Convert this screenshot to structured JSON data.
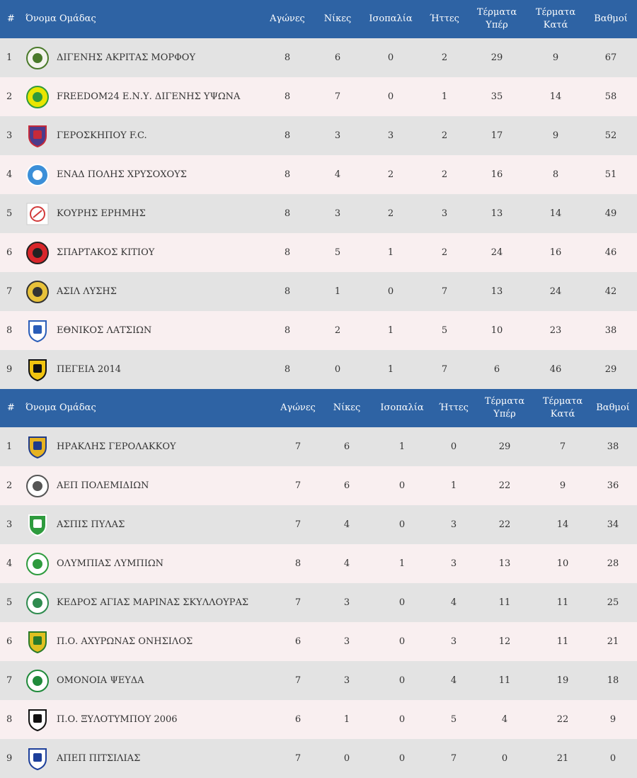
{
  "headers": {
    "num": "#",
    "team": "Όνομα Ομάδας",
    "played": "Αγώνες",
    "wins": "Νίκες",
    "draws": "Ισοπαλία",
    "losses": "Ήττες",
    "gf_1": "Τέρματα",
    "gf_2": "Υπέρ",
    "ga_1": "Τέρματα",
    "ga_2": "Κατά",
    "points": "Βαθμοί"
  },
  "tables": [
    {
      "rows": [
        {
          "pos": "1",
          "team": "ΔΙΓΕΝΗΣ ΑΚΡΙΤΑΣ ΜΟΡΦΟΥ",
          "played": "8",
          "wins": "6",
          "draws": "0",
          "losses": "2",
          "gf": "29",
          "ga": "9",
          "points": "67",
          "logo": {
            "bg": "#f4f4ee",
            "fg": "#4a7a2a",
            "shape": "circle"
          }
        },
        {
          "pos": "2",
          "team": "FREEDOM24 Ε.Ν.Υ. ΔΙΓΕΝΗΣ ΥΨΩΝΑ",
          "played": "8",
          "wins": "7",
          "draws": "0",
          "losses": "1",
          "gf": "35",
          "ga": "14",
          "points": "58",
          "logo": {
            "bg": "#e9e500",
            "fg": "#2f9a3a",
            "shape": "circle"
          }
        },
        {
          "pos": "3",
          "team": "ΓΕΡΟΣΚΗΠΟΥ F.C.",
          "played": "8",
          "wins": "3",
          "draws": "3",
          "losses": "2",
          "gf": "17",
          "ga": "9",
          "points": "52",
          "logo": {
            "bg": "#4b3b8c",
            "fg": "#c62a3a",
            "shape": "shield"
          }
        },
        {
          "pos": "4",
          "team": "ΕΝΑΔ ΠΟΛΗΣ ΧΡΥΣΟΧΟΥΣ",
          "played": "8",
          "wins": "4",
          "draws": "2",
          "losses": "2",
          "gf": "16",
          "ga": "8",
          "points": "51",
          "logo": {
            "bg": "#3b8fd8",
            "fg": "#ffffff",
            "shape": "circle"
          }
        },
        {
          "pos": "5",
          "team": "ΚΟΥΡΗΣ ΕΡΗΜΗΣ",
          "played": "8",
          "wins": "3",
          "draws": "2",
          "losses": "3",
          "gf": "13",
          "ga": "14",
          "points": "49",
          "logo": {
            "bg": "#ffffff",
            "fg": "#d23a3a",
            "shape": "square"
          }
        },
        {
          "pos": "6",
          "team": "ΣΠΑΡΤΑΚΟΣ ΚΙΤΙΟΥ",
          "played": "8",
          "wins": "5",
          "draws": "1",
          "losses": "2",
          "gf": "24",
          "ga": "16",
          "points": "46",
          "logo": {
            "bg": "#d8262b",
            "fg": "#222222",
            "shape": "circle"
          }
        },
        {
          "pos": "7",
          "team": "ΑΣΙΛ ΛΥΣΗΣ",
          "played": "8",
          "wins": "1",
          "draws": "0",
          "losses": "7",
          "gf": "13",
          "ga": "24",
          "points": "42",
          "logo": {
            "bg": "#e8c23a",
            "fg": "#333333",
            "shape": "circle"
          }
        },
        {
          "pos": "8",
          "team": "ΕΘΝΙΚΟΣ ΛΑΤΣΙΩΝ",
          "played": "8",
          "wins": "2",
          "draws": "1",
          "losses": "5",
          "gf": "10",
          "ga": "23",
          "points": "38",
          "logo": {
            "bg": "#ffffff",
            "fg": "#2a5db8",
            "shape": "shield"
          }
        },
        {
          "pos": "9",
          "team": "ΠΕΓΕΙΑ 2014",
          "played": "8",
          "wins": "0",
          "draws": "1",
          "losses": "7",
          "gf": "6",
          "ga": "46",
          "points": "29",
          "logo": {
            "bg": "#f1c40f",
            "fg": "#111111",
            "shape": "shield"
          }
        }
      ]
    },
    {
      "rows": [
        {
          "pos": "1",
          "team": "ΗΡΑΚΛΗΣ ΓΕΡΟΛΑΚΚΟΥ",
          "played": "7",
          "wins": "6",
          "draws": "1",
          "losses": "0",
          "gf": "29",
          "ga": "7",
          "points": "38",
          "logo": {
            "bg": "#e6b321",
            "fg": "#1f3b8a",
            "shape": "shield"
          }
        },
        {
          "pos": "2",
          "team": "ΑΕΠ ΠΟΛΕΜΙΔΙΩΝ",
          "played": "7",
          "wins": "6",
          "draws": "0",
          "losses": "1",
          "gf": "22",
          "ga": "9",
          "points": "36",
          "logo": {
            "bg": "#ffffff",
            "fg": "#555555",
            "shape": "circle"
          }
        },
        {
          "pos": "3",
          "team": "ΑΣΠΙΣ ΠΥΛΑΣ",
          "played": "7",
          "wins": "4",
          "draws": "0",
          "losses": "3",
          "gf": "22",
          "ga": "14",
          "points": "34",
          "logo": {
            "bg": "#2e9b3e",
            "fg": "#ffffff",
            "shape": "shield"
          }
        },
        {
          "pos": "4",
          "team": "ΟΛΥΜΠΙΑΣ ΛΥΜΠΙΩΝ",
          "played": "8",
          "wins": "4",
          "draws": "1",
          "losses": "3",
          "gf": "13",
          "ga": "10",
          "points": "28",
          "logo": {
            "bg": "#ffffff",
            "fg": "#2e9b3e",
            "shape": "circle"
          }
        },
        {
          "pos": "5",
          "team": "ΚΕΔΡΟΣ ΑΓΙΑΣ ΜΑΡΙΝΑΣ ΣΚΥΛΛΟΥΡΑΣ",
          "played": "7",
          "wins": "3",
          "draws": "0",
          "losses": "4",
          "gf": "11",
          "ga": "11",
          "points": "25",
          "logo": {
            "bg": "#ffffff",
            "fg": "#2e8b4e",
            "shape": "circle"
          }
        },
        {
          "pos": "6",
          "team": "Π.Ο. ΑΧΥΡΩΝΑΣ ΟΝΗΣΙΛΟΣ",
          "played": "6",
          "wins": "3",
          "draws": "0",
          "losses": "3",
          "gf": "12",
          "ga": "11",
          "points": "21",
          "logo": {
            "bg": "#e0c020",
            "fg": "#2a7a2a",
            "shape": "shield"
          }
        },
        {
          "pos": "7",
          "team": "ΟΜΟΝΟΙΑ ΨΕΥΔΑ",
          "played": "7",
          "wins": "3",
          "draws": "0",
          "losses": "4",
          "gf": "11",
          "ga": "19",
          "points": "18",
          "logo": {
            "bg": "#ffffff",
            "fg": "#1f8a3a",
            "shape": "circle"
          }
        },
        {
          "pos": "8",
          "team": "Π.Ο. ΞΥΛΟΤΥΜΠΟΥ 2006",
          "played": "6",
          "wins": "1",
          "draws": "0",
          "losses": "5",
          "gf": "4",
          "ga": "22",
          "points": "9",
          "logo": {
            "bg": "#ffffff",
            "fg": "#111111",
            "shape": "shield"
          }
        },
        {
          "pos": "9",
          "team": "ΑΠΕΠ ΠΙΤΣΙΛΙΑΣ",
          "played": "7",
          "wins": "0",
          "draws": "0",
          "losses": "7",
          "gf": "0",
          "ga": "21",
          "points": "0",
          "logo": {
            "bg": "#ffffff",
            "fg": "#1d3f9a",
            "shape": "shield"
          }
        }
      ]
    }
  ]
}
